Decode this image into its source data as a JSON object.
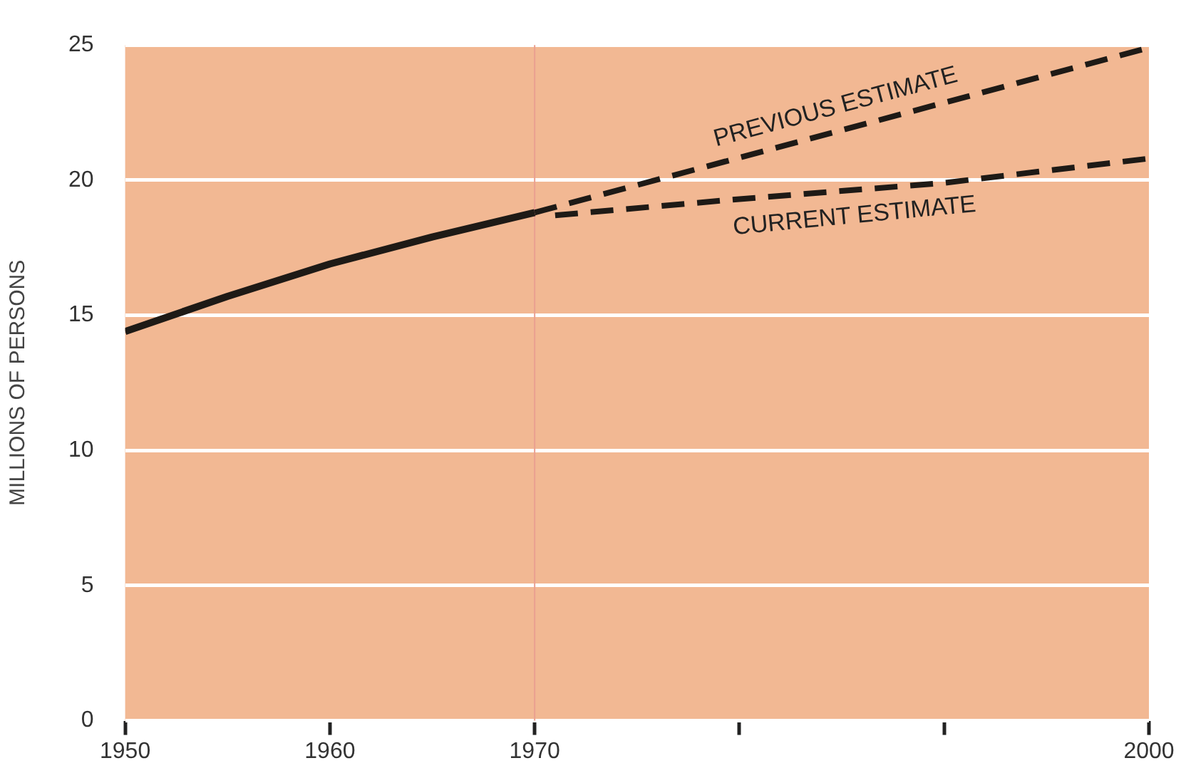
{
  "chart_data": {
    "type": "line",
    "ylabel": "MILLIONS OF PERSONS",
    "xlim": [
      1950,
      2000
    ],
    "xticks": [
      1950,
      1960,
      1970,
      {
        "value": 1980,
        "label": null
      },
      {
        "value": 1990,
        "label": null
      },
      2000
    ],
    "ylim": [
      0,
      25
    ],
    "yticks": [
      0,
      5,
      10,
      15,
      20,
      25
    ],
    "grid": "y",
    "legend": false,
    "marker": "none",
    "ref_lines": [
      {
        "axis": "x",
        "value": 1970,
        "color": "#eaa090"
      }
    ],
    "series": [
      {
        "x": [
          1950,
          1955,
          1960,
          1965,
          1970
        ],
        "values": [
          14.4,
          15.7,
          16.9,
          17.9,
          18.8
        ],
        "color": "#1e1a16",
        "line_style": "solid"
      },
      {
        "name": "PREVIOUS ESTIMATE",
        "x": [
          1970,
          2000
        ],
        "values": [
          18.8,
          24.9
        ],
        "color": "#1e1a16",
        "line_style": "dashed"
      },
      {
        "name": "CURRENT ESTIMATE",
        "x": [
          1971,
          1980,
          1990,
          2000
        ],
        "values": [
          18.7,
          19.3,
          19.9,
          20.8
        ],
        "color": "#1e1a16",
        "line_style": "dashed"
      }
    ]
  }
}
